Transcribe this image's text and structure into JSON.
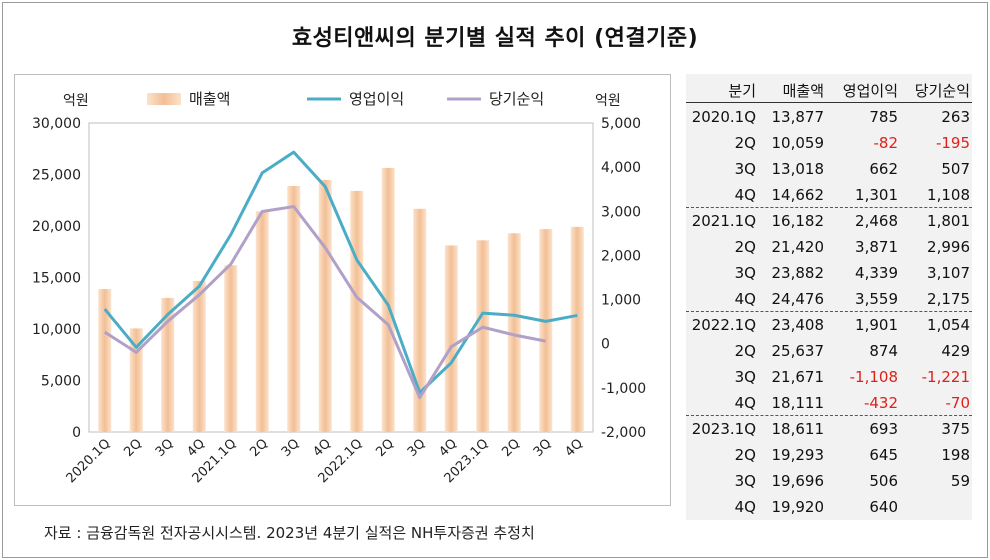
{
  "title": "효성티앤씨의 분기별 실적 추이 (연결기준)",
  "source": "자료 : 금융감독원 전자공시시스템. 2023년 4분기 실적은 NH투자증권 추정치",
  "chart_data": {
    "type": "bar",
    "left_unit": "억원",
    "right_unit": "억원",
    "categories": [
      "2020.1Q",
      "2Q",
      "3Q",
      "4Q",
      "2021.1Q",
      "2Q",
      "3Q",
      "4Q",
      "2022.1Q",
      "2Q",
      "3Q",
      "4Q",
      "2023.1Q",
      "2Q",
      "3Q",
      "4Q"
    ],
    "y_left": {
      "min": 0,
      "max": 30000,
      "ticks": [
        0,
        5000,
        10000,
        15000,
        20000,
        25000,
        30000
      ],
      "tick_labels": [
        "0",
        "5,000",
        "10,000",
        "15,000",
        "20,000",
        "25,000",
        "30,000"
      ]
    },
    "y_right": {
      "min": -2000,
      "max": 5000,
      "ticks": [
        -2000,
        -1000,
        0,
        1000,
        2000,
        3000,
        4000,
        5000
      ],
      "tick_labels": [
        "-2,000",
        "-1,000",
        "0",
        "1,000",
        "2,000",
        "3,000",
        "4,000",
        "5,000"
      ]
    },
    "legend_position": "top",
    "series": [
      {
        "name": "매출액",
        "kind": "bar",
        "axis": "left",
        "color": "#f6c9a4",
        "values": [
          13877,
          10059,
          13018,
          14662,
          16182,
          21420,
          23882,
          24476,
          23408,
          25637,
          21671,
          18111,
          18611,
          19293,
          19696,
          19920
        ]
      },
      {
        "name": "영업이익",
        "kind": "line",
        "axis": "right",
        "color": "#4bacc6",
        "values": [
          785,
          -82,
          662,
          1301,
          2468,
          3871,
          4339,
          3559,
          1901,
          874,
          -1108,
          -432,
          693,
          645,
          506,
          640
        ]
      },
      {
        "name": "당기순익",
        "kind": "line",
        "axis": "right",
        "color": "#b1a0c7",
        "values": [
          263,
          -195,
          507,
          1108,
          1801,
          2996,
          3107,
          2175,
          1054,
          429,
          -1221,
          -70,
          375,
          198,
          59,
          null
        ]
      }
    ]
  },
  "table": {
    "headers": [
      "분기",
      "매출액",
      "영업이익",
      "당기순익"
    ],
    "rows": [
      [
        "2020.1Q",
        "13,877",
        "785",
        "263"
      ],
      [
        "2Q",
        "10,059",
        "-82",
        "-195"
      ],
      [
        "3Q",
        "13,018",
        "662",
        "507"
      ],
      [
        "4Q",
        "14,662",
        "1,301",
        "1,108"
      ],
      [
        "2021.1Q",
        "16,182",
        "2,468",
        "1,801"
      ],
      [
        "2Q",
        "21,420",
        "3,871",
        "2,996"
      ],
      [
        "3Q",
        "23,882",
        "4,339",
        "3,107"
      ],
      [
        "4Q",
        "24,476",
        "3,559",
        "2,175"
      ],
      [
        "2022.1Q",
        "23,408",
        "1,901",
        "1,054"
      ],
      [
        "2Q",
        "25,637",
        "874",
        "429"
      ],
      [
        "3Q",
        "21,671",
        "-1,108",
        "-1,221"
      ],
      [
        "4Q",
        "18,111",
        "-432",
        "-70"
      ],
      [
        "2023.1Q",
        "18,611",
        "693",
        "375"
      ],
      [
        "2Q",
        "19,293",
        "645",
        "198"
      ],
      [
        "3Q",
        "19,696",
        "506",
        "59"
      ],
      [
        "4Q",
        "19,920",
        "640",
        ""
      ]
    ]
  }
}
